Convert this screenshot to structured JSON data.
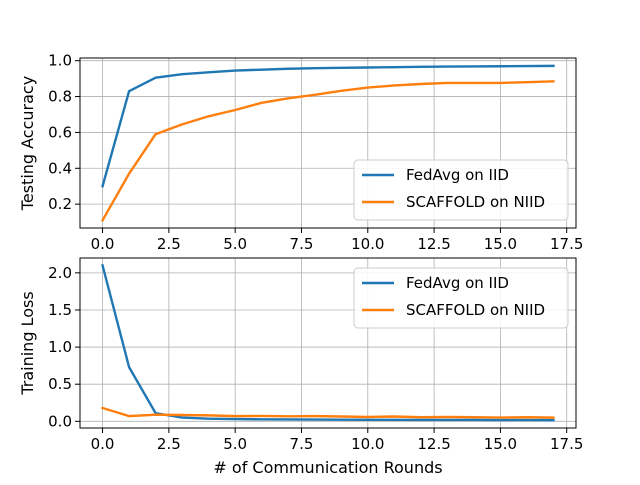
{
  "chart_data": [
    {
      "type": "line",
      "x": [
        0,
        1,
        2,
        3,
        4,
        5,
        6,
        7,
        8,
        9,
        10,
        11,
        12,
        13,
        14,
        15,
        16,
        17
      ],
      "series": [
        {
          "name": "FedAvg on IID",
          "color": "#1f77b4",
          "values": [
            0.3,
            0.83,
            0.905,
            0.925,
            0.935,
            0.945,
            0.95,
            0.955,
            0.958,
            0.96,
            0.962,
            0.964,
            0.966,
            0.967,
            0.968,
            0.969,
            0.97,
            0.971
          ]
        },
        {
          "name": "SCAFFOLD on NIID",
          "color": "#ff7f0e",
          "values": [
            0.11,
            0.37,
            0.59,
            0.645,
            0.69,
            0.725,
            0.765,
            0.79,
            0.81,
            0.832,
            0.85,
            0.862,
            0.87,
            0.876,
            0.876,
            0.876,
            0.88,
            0.885
          ]
        }
      ],
      "xlabel": "",
      "ylabel": "Testing Accuracy",
      "xlim": [
        -0.85,
        17.85
      ],
      "ylim": [
        0.067,
        1.015
      ],
      "xticks": [
        0.0,
        2.5,
        5.0,
        7.5,
        10.0,
        12.5,
        15.0,
        17.5
      ],
      "xtick_labels": [
        "0.0",
        "2.5",
        "5.0",
        "7.5",
        "10.0",
        "12.5",
        "15.0",
        "17.5"
      ],
      "yticks": [
        0.2,
        0.4,
        0.6,
        0.8,
        1.0
      ],
      "ytick_labels": [
        "0.2",
        "0.4",
        "0.6",
        "0.8",
        "1.0"
      ],
      "grid": true,
      "legend": "lower-right"
    },
    {
      "type": "line",
      "x": [
        0,
        1,
        2,
        3,
        4,
        5,
        6,
        7,
        8,
        9,
        10,
        11,
        12,
        13,
        14,
        15,
        16,
        17
      ],
      "series": [
        {
          "name": "FedAvg on IID",
          "color": "#1f77b4",
          "values": [
            2.1,
            0.73,
            0.11,
            0.05,
            0.035,
            0.03,
            0.027,
            0.025,
            0.023,
            0.022,
            0.02,
            0.02,
            0.019,
            0.018,
            0.018,
            0.017,
            0.017,
            0.016
          ]
        },
        {
          "name": "SCAFFOLD on NIID",
          "color": "#ff7f0e",
          "values": [
            0.18,
            0.07,
            0.09,
            0.085,
            0.08,
            0.07,
            0.072,
            0.068,
            0.07,
            0.065,
            0.058,
            0.065,
            0.055,
            0.058,
            0.055,
            0.05,
            0.055,
            0.05
          ]
        }
      ],
      "xlabel": "# of Communication Rounds",
      "ylabel": "Training Loss",
      "xlim": [
        -0.85,
        17.85
      ],
      "ylim": [
        -0.09,
        2.2
      ],
      "xticks": [
        0.0,
        2.5,
        5.0,
        7.5,
        10.0,
        12.5,
        15.0,
        17.5
      ],
      "xtick_labels": [
        "0.0",
        "2.5",
        "5.0",
        "7.5",
        "10.0",
        "12.5",
        "15.0",
        "17.5"
      ],
      "yticks": [
        0.0,
        0.5,
        1.0,
        1.5,
        2.0
      ],
      "ytick_labels": [
        "0.0",
        "0.5",
        "1.0",
        "1.5",
        "2.0"
      ],
      "grid": true,
      "legend": "upper-right"
    }
  ]
}
